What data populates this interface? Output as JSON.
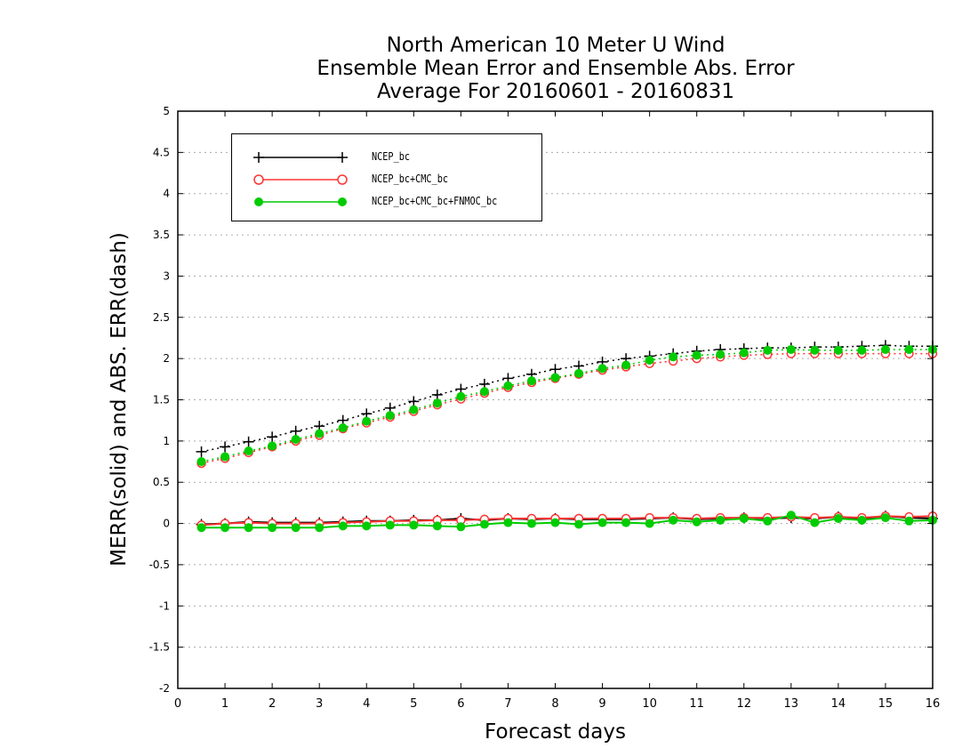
{
  "chart_data": {
    "type": "line",
    "title_lines": [
      "North American 10 Meter U Wind",
      "Ensemble Mean Error and Ensemble Abs. Error",
      "Average For 20160601 - 20160831"
    ],
    "xlabel": "Forecast days",
    "ylabel": "MERR(solid) and ABS. ERR(dash)",
    "xlim": [
      0,
      16
    ],
    "ylim": [
      -2,
      5
    ],
    "x_ticks": [
      0,
      1,
      2,
      3,
      4,
      5,
      6,
      7,
      8,
      9,
      10,
      11,
      12,
      13,
      14,
      15,
      16
    ],
    "y_ticks": [
      -2,
      -1.5,
      -1,
      -0.5,
      0,
      0.5,
      1,
      1.5,
      2,
      2.5,
      3,
      3.5,
      4,
      4.5,
      5
    ],
    "y_tick_labels": [
      "-2",
      "-1.5",
      "-1",
      "-0.5",
      "0",
      "0.5",
      "1",
      "1.5",
      "2",
      "2.5",
      "3",
      "3.5",
      "4",
      "4.5",
      "5"
    ],
    "grid": "horizontal dotted",
    "legend_position": "top-left",
    "x": [
      0.5,
      1,
      1.5,
      2,
      2.5,
      3,
      3.5,
      4,
      4.5,
      5,
      5.5,
      6,
      6.5,
      7,
      7.5,
      8,
      8.5,
      9,
      9.5,
      10,
      10.5,
      11,
      11.5,
      12,
      12.5,
      13,
      13.5,
      14,
      14.5,
      15,
      15.5,
      16
    ],
    "series": [
      {
        "name": "NCEP_bc",
        "color": "#000000",
        "marker": "plus",
        "abs_err": [
          0.87,
          0.93,
          0.99,
          1.05,
          1.12,
          1.18,
          1.25,
          1.33,
          1.4,
          1.48,
          1.56,
          1.63,
          1.69,
          1.76,
          1.81,
          1.87,
          1.91,
          1.96,
          2.0,
          2.03,
          2.06,
          2.09,
          2.11,
          2.12,
          2.13,
          2.13,
          2.14,
          2.14,
          2.15,
          2.16,
          2.15,
          2.15
        ],
        "merr": [
          -0.01,
          0.0,
          0.02,
          0.01,
          0.01,
          0.01,
          0.02,
          0.03,
          0.03,
          0.04,
          0.04,
          0.06,
          0.04,
          0.06,
          0.05,
          0.06,
          0.05,
          0.05,
          0.05,
          0.06,
          0.07,
          0.05,
          0.06,
          0.07,
          0.06,
          0.07,
          0.06,
          0.08,
          0.05,
          0.09,
          0.07,
          0.06
        ]
      },
      {
        "name": "NCEP_bc+CMC_bc",
        "color": "#ff3333",
        "marker": "open-circle",
        "abs_err": [
          0.73,
          0.79,
          0.86,
          0.93,
          1.0,
          1.07,
          1.15,
          1.22,
          1.29,
          1.36,
          1.44,
          1.51,
          1.58,
          1.65,
          1.71,
          1.76,
          1.81,
          1.86,
          1.9,
          1.94,
          1.97,
          2.0,
          2.02,
          2.04,
          2.05,
          2.06,
          2.06,
          2.06,
          2.06,
          2.06,
          2.06,
          2.06
        ],
        "merr": [
          -0.02,
          0.0,
          0.01,
          0.0,
          0.0,
          0.0,
          0.01,
          0.02,
          0.03,
          0.03,
          0.04,
          0.04,
          0.05,
          0.06,
          0.06,
          0.06,
          0.06,
          0.06,
          0.06,
          0.07,
          0.07,
          0.06,
          0.07,
          0.07,
          0.07,
          0.08,
          0.07,
          0.08,
          0.07,
          0.09,
          0.08,
          0.09
        ]
      },
      {
        "name": "NCEP_bc+CMC_bc+FNMOC_bc",
        "color": "#00cc00",
        "marker": "filled-circle",
        "abs_err": [
          0.75,
          0.81,
          0.88,
          0.94,
          1.02,
          1.09,
          1.16,
          1.24,
          1.31,
          1.38,
          1.46,
          1.54,
          1.6,
          1.67,
          1.73,
          1.77,
          1.82,
          1.88,
          1.92,
          1.98,
          2.02,
          2.04,
          2.05,
          2.07,
          2.1,
          2.11,
          2.1,
          2.1,
          2.1,
          2.11,
          2.11,
          2.11
        ],
        "merr": [
          -0.05,
          -0.05,
          -0.05,
          -0.05,
          -0.05,
          -0.05,
          -0.03,
          -0.03,
          -0.02,
          -0.02,
          -0.03,
          -0.04,
          -0.01,
          0.01,
          0.0,
          0.01,
          -0.01,
          0.01,
          0.01,
          0.0,
          0.04,
          0.02,
          0.04,
          0.06,
          0.03,
          0.1,
          0.01,
          0.06,
          0.04,
          0.07,
          0.03,
          0.04
        ]
      }
    ]
  }
}
